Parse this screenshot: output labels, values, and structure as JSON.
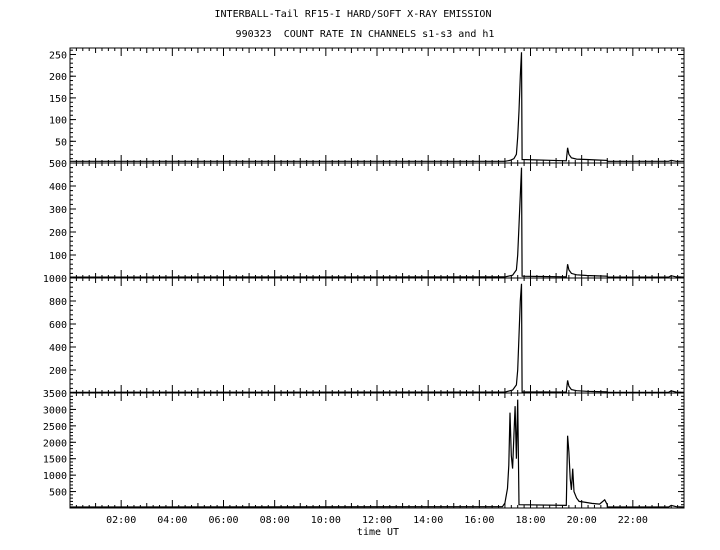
{
  "title_line1": "INTERBALL-Tail RF15-I HARD/SOFT X-RAY EMISSION",
  "title_line2": "990323  COUNT RATE IN CHANNELS s1-s3 and h1",
  "chart_data": {
    "type": "line",
    "xlabel": "time UT",
    "xlim": [
      0,
      24
    ],
    "x_ticks": [
      2,
      4,
      6,
      8,
      10,
      12,
      14,
      16,
      18,
      20,
      22
    ],
    "x_tick_labels": [
      "02:00",
      "04:00",
      "06:00",
      "08:00",
      "10:00",
      "12:00",
      "14:00",
      "16:00",
      "18:00",
      "20:00",
      "22:00"
    ],
    "grid": false,
    "panels": [
      {
        "ylim": [
          0,
          265
        ],
        "y_ticks": [
          50,
          100,
          150,
          200,
          250
        ],
        "y_tick_labels": [
          "50",
          "100",
          "150",
          "200",
          "250"
        ],
        "values": [
          [
            0,
            4
          ],
          [
            17.0,
            4
          ],
          [
            17.2,
            6
          ],
          [
            17.35,
            10
          ],
          [
            17.45,
            20
          ],
          [
            17.5,
            60
          ],
          [
            17.55,
            120
          ],
          [
            17.6,
            200
          ],
          [
            17.65,
            255
          ],
          [
            17.67,
            8
          ],
          [
            19.4,
            5
          ],
          [
            19.45,
            35
          ],
          [
            19.5,
            20
          ],
          [
            19.6,
            12
          ],
          [
            19.8,
            9
          ],
          [
            20.2,
            8
          ],
          [
            20.6,
            7
          ],
          [
            21.0,
            6
          ],
          [
            21.01,
            4
          ],
          [
            23.4,
            4
          ],
          [
            23.5,
            6
          ],
          [
            23.7,
            4
          ],
          [
            24,
            4
          ]
        ]
      },
      {
        "ylim": [
          0,
          500
        ],
        "y_ticks": [
          100,
          200,
          300,
          400,
          500
        ],
        "y_tick_labels": [
          "100",
          "200",
          "300",
          "400",
          "500"
        ],
        "values": [
          [
            0,
            4
          ],
          [
            17.0,
            5
          ],
          [
            17.3,
            12
          ],
          [
            17.45,
            35
          ],
          [
            17.5,
            100
          ],
          [
            17.55,
            230
          ],
          [
            17.6,
            360
          ],
          [
            17.65,
            480
          ],
          [
            17.67,
            8
          ],
          [
            19.4,
            5
          ],
          [
            19.45,
            60
          ],
          [
            19.5,
            35
          ],
          [
            19.6,
            20
          ],
          [
            19.8,
            14
          ],
          [
            20.2,
            11
          ],
          [
            20.6,
            9
          ],
          [
            21.0,
            8
          ],
          [
            21.01,
            4
          ],
          [
            23.4,
            4
          ],
          [
            23.5,
            10
          ],
          [
            23.7,
            5
          ],
          [
            24,
            4
          ]
        ]
      },
      {
        "ylim": [
          0,
          1000
        ],
        "y_ticks": [
          200,
          400,
          600,
          800,
          1000
        ],
        "y_tick_labels": [
          "200",
          "400",
          "600",
          "800",
          "1000"
        ],
        "values": [
          [
            0,
            6
          ],
          [
            17.0,
            8
          ],
          [
            17.3,
            25
          ],
          [
            17.45,
            70
          ],
          [
            17.5,
            200
          ],
          [
            17.55,
            500
          ],
          [
            17.6,
            800
          ],
          [
            17.65,
            950
          ],
          [
            17.67,
            10
          ],
          [
            19.4,
            8
          ],
          [
            19.45,
            110
          ],
          [
            19.5,
            60
          ],
          [
            19.6,
            30
          ],
          [
            19.8,
            20
          ],
          [
            20.2,
            15
          ],
          [
            20.6,
            12
          ],
          [
            21.0,
            10
          ],
          [
            21.01,
            6
          ],
          [
            23.4,
            6
          ],
          [
            23.5,
            18
          ],
          [
            23.7,
            8
          ],
          [
            24,
            6
          ]
        ]
      },
      {
        "ylim": [
          0,
          3500
        ],
        "y_ticks": [
          500,
          1000,
          1500,
          2000,
          2500,
          3000,
          3500
        ],
        "y_tick_labels": [
          "500",
          "1000",
          "1500",
          "2000",
          "2500",
          "3000",
          "3500"
        ],
        "values": [
          [
            0,
            30
          ],
          [
            16.9,
            40
          ],
          [
            17.0,
            150
          ],
          [
            17.1,
            600
          ],
          [
            17.15,
            1300
          ],
          [
            17.2,
            2900
          ],
          [
            17.25,
            1600
          ],
          [
            17.3,
            1200
          ],
          [
            17.35,
            2200
          ],
          [
            17.4,
            3100
          ],
          [
            17.45,
            1500
          ],
          [
            17.5,
            3300
          ],
          [
            17.55,
            100
          ],
          [
            19.4,
            80
          ],
          [
            19.45,
            2200
          ],
          [
            19.5,
            1700
          ],
          [
            19.55,
            900
          ],
          [
            19.6,
            550
          ],
          [
            19.65,
            1200
          ],
          [
            19.7,
            500
          ],
          [
            19.8,
            300
          ],
          [
            19.9,
            200
          ],
          [
            20.1,
            180
          ],
          [
            20.4,
            140
          ],
          [
            20.7,
            120
          ],
          [
            20.9,
            250
          ],
          [
            21.0,
            100
          ],
          [
            21.01,
            30
          ],
          [
            23.4,
            30
          ],
          [
            23.5,
            80
          ],
          [
            23.7,
            40
          ],
          [
            24,
            30
          ]
        ]
      }
    ]
  }
}
